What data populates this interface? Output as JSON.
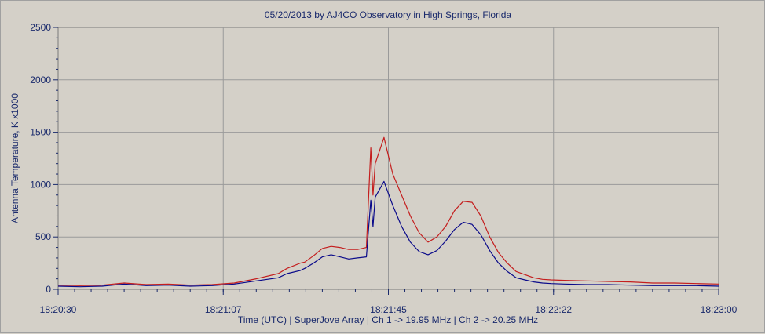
{
  "chart_data": {
    "type": "line",
    "title": "05/20/2013  by  AJ4CO Observatory  in  High Springs, Florida",
    "xlabel": "Time (UTC)  |  SuperJove Array  |  Ch 1 -> 19.95 MHz  |  Ch 2 -> 20.25 MHz",
    "ylabel": "Antenna Temperature, K x1000",
    "x_ticks": [
      "18:20:30",
      "18:21:07",
      "18:21:45",
      "18:22:22",
      "18:23:00"
    ],
    "x_range_seconds": [
      0,
      150
    ],
    "y_ticks": [
      0,
      500,
      1000,
      1500,
      2000,
      2500
    ],
    "ylim": [
      0,
      2500
    ],
    "grid": true,
    "colors": {
      "ch1": "#0a0a8a",
      "ch2": "#c41e1e",
      "grid": "#9a9a9a",
      "plot_bg": "#d4d0c8"
    },
    "series": [
      {
        "key": "ch2",
        "x": [
          0,
          5,
          10,
          15,
          20,
          25,
          30,
          35,
          40,
          45,
          50,
          52,
          55,
          56,
          58,
          60,
          62,
          64,
          66,
          68,
          70,
          71,
          71.5,
          72,
          74,
          76,
          78,
          80,
          82,
          84,
          86,
          88,
          90,
          92,
          94,
          96,
          98,
          100,
          102,
          104,
          106,
          108,
          110,
          112,
          115,
          120,
          125,
          130,
          135,
          140,
          145,
          150
        ],
        "y": [
          40,
          35,
          40,
          60,
          45,
          50,
          40,
          45,
          60,
          100,
          150,
          200,
          250,
          260,
          320,
          390,
          410,
          400,
          380,
          380,
          400,
          1350,
          900,
          1200,
          1450,
          1100,
          900,
          700,
          540,
          450,
          500,
          600,
          750,
          840,
          830,
          700,
          500,
          350,
          250,
          170,
          140,
          110,
          95,
          90,
          85,
          80,
          75,
          70,
          60,
          60,
          55,
          50
        ]
      },
      {
        "key": "ch1",
        "x": [
          0,
          5,
          10,
          15,
          20,
          25,
          30,
          35,
          40,
          45,
          50,
          52,
          55,
          56,
          58,
          60,
          62,
          64,
          66,
          68,
          70,
          71,
          71.5,
          72,
          74,
          76,
          78,
          80,
          82,
          84,
          86,
          88,
          90,
          92,
          94,
          96,
          98,
          100,
          102,
          104,
          106,
          108,
          110,
          112,
          115,
          120,
          125,
          130,
          135,
          140,
          145,
          150
        ],
        "y": [
          30,
          25,
          30,
          50,
          35,
          40,
          30,
          35,
          50,
          80,
          110,
          150,
          180,
          200,
          250,
          310,
          330,
          310,
          290,
          300,
          310,
          850,
          600,
          880,
          1030,
          800,
          600,
          450,
          360,
          330,
          370,
          460,
          570,
          640,
          620,
          520,
          370,
          250,
          170,
          110,
          90,
          70,
          60,
          55,
          50,
          45,
          45,
          40,
          35,
          35,
          35,
          30
        ]
      }
    ]
  }
}
